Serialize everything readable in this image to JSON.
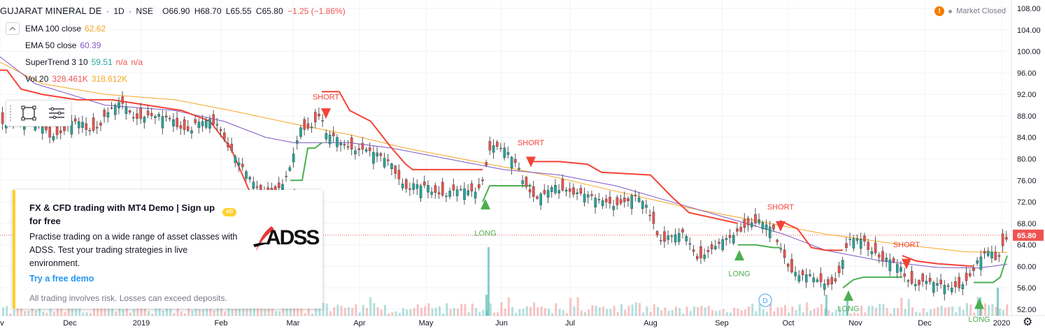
{
  "header": {
    "symbol": "GUJARAT MINERAL DE",
    "timeframe": "1D",
    "exchange": "NSE",
    "open_label": "O",
    "open": "66.90",
    "high_label": "H",
    "high": "68.70",
    "low_label": "L",
    "low": "65.55",
    "close_label": "C",
    "close": "65.80",
    "change": "−1.25 (−1.86%)"
  },
  "status": {
    "text": "Market Closed",
    "warn_icon": "!"
  },
  "collapse_icon": "chevron-up-icon",
  "indicators": {
    "ema100": {
      "name": "EMA 100 close",
      "value": "62.62",
      "color": "#f5a623"
    },
    "ema50": {
      "name": "EMA 50 close",
      "value": "60.39",
      "color": "#7e57c2"
    },
    "supertrend": {
      "name": "SuperTrend 3 10",
      "value1": "59.51",
      "value2": "n/a",
      "value3": "n/a"
    },
    "volume": {
      "name": "Vol 20",
      "value1": "328.461K",
      "value2": "318.612K"
    }
  },
  "drawing_tools": [
    "rectangle-tool-icon",
    "line-menu-icon"
  ],
  "ad": {
    "title": "FX & CFD trading with MT4 Demo | Sign up for free",
    "badge": "AD",
    "description": "Practise trading on a wide range of asset classes with ADSS. Test your trading strategies in live environment.",
    "cta": "Try a free demo",
    "disclaimer": "All trading involves risk. Losses can exceed deposits.",
    "logo_text": "ADSS"
  },
  "chart_data": {
    "type": "candlestick",
    "price_axis": {
      "ticks": [
        "108.00",
        "104.00",
        "100.00",
        "96.00",
        "92.00",
        "88.00",
        "84.00",
        "80.00",
        "76.00",
        "72.00",
        "68.00",
        "64.00",
        "60.00",
        "56.00",
        "52.00"
      ],
      "range": [
        52,
        108
      ],
      "last_price_label": "65.80",
      "last_price": 65.8
    },
    "time_axis": {
      "labels": [
        "ov",
        "Dec",
        "2019",
        "Feb",
        "Mar",
        "Apr",
        "May",
        "Jun",
        "Jul",
        "Aug",
        "Sep",
        "Oct",
        "Nov",
        "Dec",
        "2020"
      ]
    },
    "supertrend": {
      "bull_color": "#4caf50",
      "bear_color": "#f44336",
      "segments": [
        {
          "dir": "bear",
          "points": [
            [
              0,
              96.5
            ],
            [
              10,
              96.5
            ],
            [
              30,
              93
            ],
            [
              60,
              92
            ],
            [
              110,
              91
            ],
            [
              160,
              91
            ],
            [
              210,
              90
            ],
            [
              260,
              89
            ],
            [
              300,
              87
            ],
            [
              330,
              82
            ],
            [
              350,
              76
            ],
            [
              360,
              73
            ],
            [
              410,
              73
            ],
            [
              415,
              73
            ]
          ]
        },
        {
          "dir": "bull",
          "points": [
            [
              415,
              76
            ],
            [
              432,
              76
            ],
            [
              440,
              82
            ],
            [
              450,
              82
            ],
            [
              460,
              83
            ]
          ]
        },
        {
          "dir": "bear",
          "points": [
            [
              460,
              92.5
            ],
            [
              485,
              92.5
            ],
            [
              500,
              89
            ],
            [
              530,
              87
            ],
            [
              560,
              82
            ],
            [
              580,
              79
            ],
            [
              590,
              78
            ],
            [
              600,
              78
            ],
            [
              690,
              78
            ]
          ]
        },
        {
          "dir": "bull",
          "points": [
            [
              690,
              72
            ],
            [
              700,
              75
            ],
            [
              720,
              75
            ],
            [
              760,
              75
            ]
          ]
        },
        {
          "dir": "bear",
          "points": [
            [
              760,
              79.5
            ],
            [
              800,
              79.5
            ],
            [
              840,
              79
            ],
            [
              860,
              77.5
            ],
            [
              930,
              77
            ],
            [
              960,
              73
            ],
            [
              985,
              70
            ],
            [
              1055,
              68
            ]
          ]
        },
        {
          "dir": "bull",
          "points": [
            [
              1055,
              64
            ],
            [
              1080,
              64
            ],
            [
              1105,
              63.5
            ],
            [
              1115,
              63.5
            ]
          ]
        },
        {
          "dir": "bear",
          "points": [
            [
              1115,
              68.5
            ],
            [
              1140,
              67
            ],
            [
              1160,
              63.5
            ],
            [
              1180,
              63
            ],
            [
              1205,
              63
            ]
          ]
        },
        {
          "dir": "bull",
          "points": [
            [
              1205,
              56
            ],
            [
              1220,
              57.5
            ],
            [
              1235,
              58
            ],
            [
              1290,
              58
            ]
          ]
        },
        {
          "dir": "bear",
          "points": [
            [
              1290,
              62
            ],
            [
              1310,
              61
            ],
            [
              1340,
              60.5
            ],
            [
              1392,
              60
            ]
          ]
        },
        {
          "dir": "bull",
          "points": [
            [
              1392,
              57
            ],
            [
              1420,
              57
            ],
            [
              1430,
              58
            ],
            [
              1440,
              62
            ]
          ]
        }
      ]
    },
    "ema100": [
      [
        0,
        98
      ],
      [
        60,
        94
      ],
      [
        150,
        92
      ],
      [
        250,
        91
      ],
      [
        330,
        89
      ],
      [
        420,
        86.5
      ],
      [
        500,
        84.5
      ],
      [
        580,
        82
      ],
      [
        680,
        79.5
      ],
      [
        780,
        77
      ],
      [
        880,
        74
      ],
      [
        980,
        71
      ],
      [
        1080,
        68.5
      ],
      [
        1180,
        66
      ],
      [
        1280,
        64.2
      ],
      [
        1380,
        62.7
      ],
      [
        1440,
        62.6
      ]
    ],
    "ema50": [
      [
        0,
        99
      ],
      [
        50,
        94
      ],
      [
        150,
        90
      ],
      [
        250,
        89
      ],
      [
        320,
        87
      ],
      [
        380,
        84
      ],
      [
        420,
        83
      ],
      [
        500,
        83
      ],
      [
        560,
        82
      ],
      [
        640,
        80
      ],
      [
        720,
        78
      ],
      [
        800,
        77
      ],
      [
        880,
        75
      ],
      [
        960,
        72
      ],
      [
        1040,
        69
      ],
      [
        1120,
        66
      ],
      [
        1180,
        63
      ],
      [
        1260,
        61
      ],
      [
        1340,
        59.8
      ],
      [
        1400,
        59.7
      ],
      [
        1440,
        60.4
      ]
    ],
    "signals": [
      {
        "type": "LONG",
        "x": 421,
        "price": 73.5,
        "label_price": 71.5
      },
      {
        "type": "SHORT",
        "x": 466,
        "price": 88.5,
        "label_price": 89.5
      },
      {
        "type": "LONG",
        "x": 694,
        "price": 71.5,
        "label_price": 67.5
      },
      {
        "type": "SHORT",
        "x": 759,
        "price": 79.5,
        "label_price": 81.0
      },
      {
        "type": "LONG",
        "x": 1057,
        "price": 62.0,
        "label_price": 60.0
      },
      {
        "type": "SHORT",
        "x": 1116,
        "price": 67.5,
        "label_price": 69.0
      },
      {
        "type": "LONG",
        "x": 1213,
        "price": 54.5,
        "label_price": 53.5
      },
      {
        "type": "SHORT",
        "x": 1296,
        "price": 60.5,
        "label_price": 62.0
      },
      {
        "type": "LONG",
        "x": 1400,
        "price": 53.0,
        "label_price": 51.5
      }
    ],
    "price_path": [
      [
        0,
        87
      ],
      [
        40,
        87
      ],
      [
        70,
        85
      ],
      [
        100,
        86
      ],
      [
        130,
        86
      ],
      [
        160,
        89
      ],
      [
        175,
        90
      ],
      [
        190,
        88
      ],
      [
        210,
        88.5
      ],
      [
        230,
        87
      ],
      [
        250,
        87
      ],
      [
        270,
        86
      ],
      [
        290,
        86
      ],
      [
        310,
        87
      ],
      [
        325,
        83
      ],
      [
        340,
        79
      ],
      [
        355,
        76
      ],
      [
        370,
        74
      ],
      [
        390,
        74.5
      ],
      [
        410,
        76
      ],
      [
        420,
        81
      ],
      [
        430,
        86
      ],
      [
        445,
        87
      ],
      [
        455,
        89
      ],
      [
        465,
        84
      ],
      [
        480,
        83
      ],
      [
        500,
        82.5
      ],
      [
        520,
        82
      ],
      [
        540,
        80
      ],
      [
        560,
        79
      ],
      [
        570,
        77
      ],
      [
        580,
        75
      ],
      [
        600,
        74
      ],
      [
        620,
        74.5
      ],
      [
        640,
        74
      ],
      [
        660,
        73.5
      ],
      [
        680,
        74
      ],
      [
        690,
        77
      ],
      [
        697,
        82
      ],
      [
        705,
        83
      ],
      [
        720,
        81
      ],
      [
        740,
        78
      ],
      [
        760,
        74
      ],
      [
        775,
        72.5
      ],
      [
        790,
        74
      ],
      [
        810,
        75
      ],
      [
        830,
        73.5
      ],
      [
        850,
        72
      ],
      [
        870,
        72
      ],
      [
        890,
        72.5
      ],
      [
        910,
        72
      ],
      [
        930,
        70
      ],
      [
        940,
        66
      ],
      [
        960,
        65
      ],
      [
        980,
        65.5
      ],
      [
        995,
        62
      ],
      [
        1010,
        63
      ],
      [
        1030,
        64
      ],
      [
        1045,
        65
      ],
      [
        1060,
        68
      ],
      [
        1075,
        69
      ],
      [
        1090,
        67
      ],
      [
        1105,
        66
      ],
      [
        1115,
        64
      ],
      [
        1125,
        61
      ],
      [
        1140,
        58
      ],
      [
        1160,
        57.5
      ],
      [
        1180,
        57
      ],
      [
        1195,
        58
      ],
      [
        1210,
        64
      ],
      [
        1230,
        64.5
      ],
      [
        1250,
        63.5
      ],
      [
        1265,
        61
      ],
      [
        1285,
        59
      ],
      [
        1300,
        57.5
      ],
      [
        1320,
        57.5
      ],
      [
        1340,
        56
      ],
      [
        1360,
        56
      ],
      [
        1380,
        58
      ],
      [
        1395,
        60
      ],
      [
        1410,
        62
      ],
      [
        1425,
        62
      ],
      [
        1435,
        66
      ],
      [
        1440,
        66
      ]
    ],
    "volume_spikes": [
      [
        694,
        30
      ],
      [
        1180,
        30
      ],
      [
        1210,
        30
      ],
      [
        1400,
        26
      ],
      [
        1425,
        40
      ],
      [
        697,
        98
      ]
    ]
  }
}
